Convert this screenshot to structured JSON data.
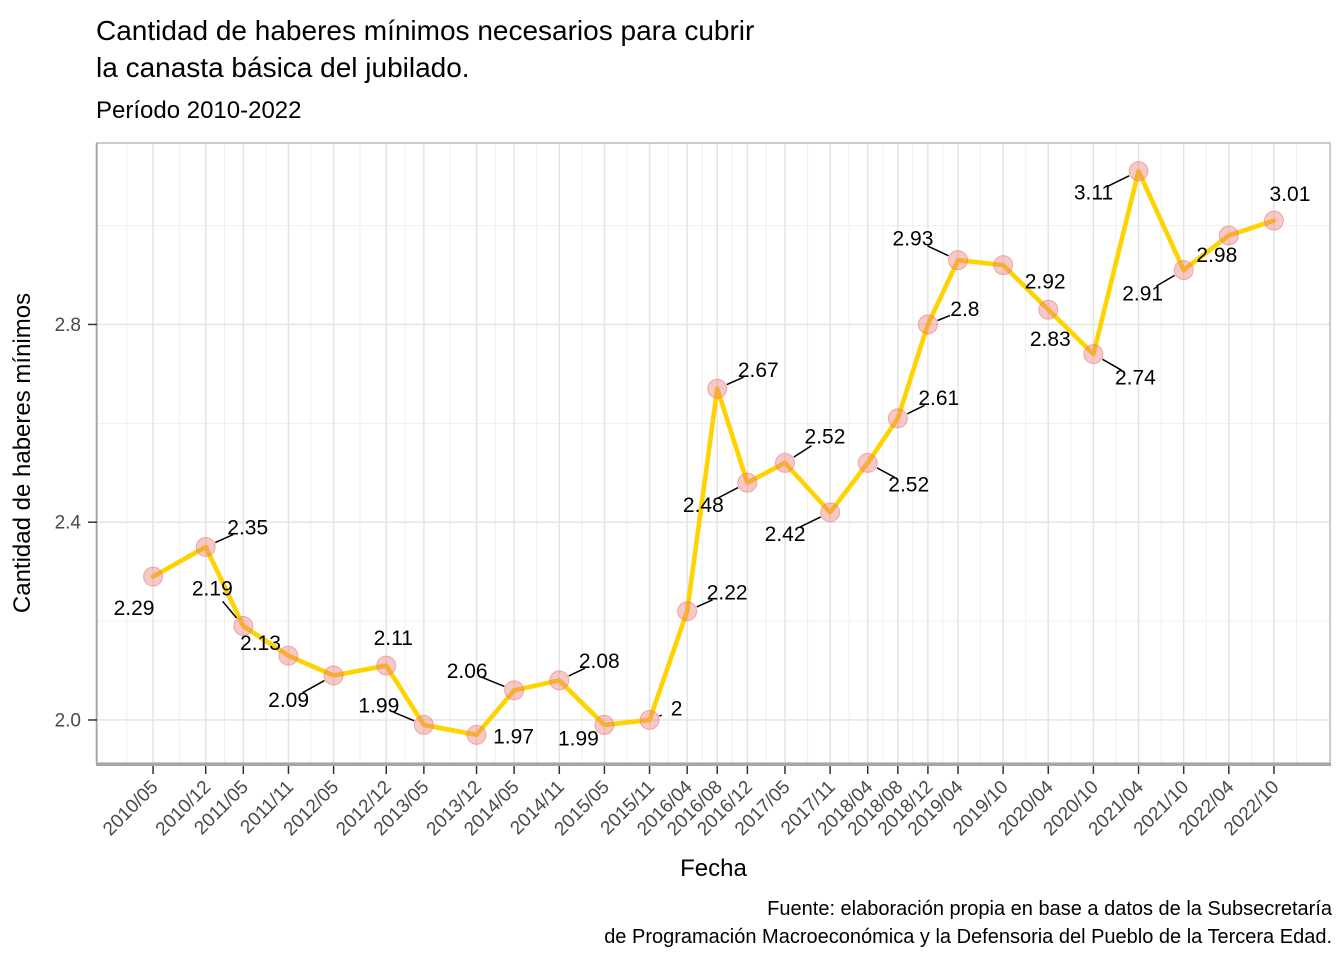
{
  "header": {
    "title_line1": "Cantidad de haberes mínimos necesarios para cubrir",
    "title_line2": "la canasta básica del jubilado.",
    "subtitle": "Período 2010-2022"
  },
  "axes": {
    "x_title": "Fecha",
    "y_title": "Cantidad de haberes mínimos"
  },
  "caption": {
    "line1": "Fuente: elaboración propia en base a datos de la Subsecretaría",
    "line2": "de Programación Macroeconómica y la Defensoria del Pueblo de la Tercera Edad."
  },
  "chart_data": {
    "type": "line",
    "title": "Cantidad de haberes mínimos necesarios para cubrir la canasta básica del jubilado.",
    "subtitle": "Período 2010-2022",
    "xlabel": "Fecha",
    "ylabel": "Cantidad de haberes mínimos",
    "categories": [
      "2010/05",
      "2010/12",
      "2011/05",
      "2011/11",
      "2012/05",
      "2012/12",
      "2013/05",
      "2013/12",
      "2014/05",
      "2014/11",
      "2015/05",
      "2015/11",
      "2016/04",
      "2016/08",
      "2016/12",
      "2017/05",
      "2017/11",
      "2018/04",
      "2018/08",
      "2018/12",
      "2019/04",
      "2019/10",
      "2020/04",
      "2020/10",
      "2021/04",
      "2021/10",
      "2022/04",
      "2022/10"
    ],
    "series": [
      {
        "name": "Cantidad de haberes mínimos",
        "values": [
          2.29,
          2.35,
          2.19,
          2.13,
          2.09,
          2.11,
          1.99,
          1.97,
          2.06,
          2.08,
          1.99,
          2,
          2.22,
          2.67,
          2.48,
          2.52,
          2.42,
          2.52,
          2.61,
          2.8,
          2.93,
          2.92,
          2.83,
          2.74,
          3.11,
          2.91,
          2.98,
          3.01
        ]
      }
    ],
    "point_labels": [
      "2.29",
      "2.35",
      "2.19",
      "2.13",
      "2.09",
      "2.11",
      "1.99",
      "1.97",
      "2.06",
      "2.08",
      "1.99",
      "2",
      "2.22",
      "2.67",
      "2.48",
      "2.52",
      "2.42",
      "2.52",
      "2.61",
      "2.8",
      "2.93",
      "2.92",
      "2.83",
      "2.74",
      "3.11",
      "2.91",
      "2.98",
      "3.01"
    ],
    "label_offsets": [
      [
        -19,
        32,
        0
      ],
      [
        42,
        -19,
        1
      ],
      [
        -31,
        -37,
        1
      ],
      [
        -28,
        -12,
        0
      ],
      [
        -45,
        25,
        1
      ],
      [
        7,
        -27,
        0
      ],
      [
        -45,
        -19,
        1
      ],
      [
        37,
        2,
        0
      ],
      [
        -47,
        -19,
        1
      ],
      [
        40,
        -19,
        1
      ],
      [
        -26,
        14,
        0
      ],
      [
        27,
        -11,
        1
      ],
      [
        40,
        -18,
        1
      ],
      [
        41,
        -18,
        1
      ],
      [
        -44,
        23,
        1
      ],
      [
        40,
        -26,
        1
      ],
      [
        -45,
        22,
        1
      ],
      [
        41,
        22,
        1
      ],
      [
        41,
        -20,
        1
      ],
      [
        37,
        -15,
        1
      ],
      [
        -45,
        -21,
        1
      ],
      [
        42,
        17,
        0
      ],
      [
        2,
        30,
        0
      ],
      [
        42,
        24,
        1
      ],
      [
        -45,
        22,
        1
      ],
      [
        -41,
        24,
        1
      ],
      [
        -12,
        20,
        0
      ],
      [
        16,
        -26,
        0
      ]
    ],
    "y_axis": {
      "tick_labels": [
        "2.0",
        "2.4",
        "2.8"
      ],
      "tick_values": [
        2.0,
        2.4,
        2.8
      ],
      "minor_values": [
        2.2,
        2.6,
        3.0
      ],
      "range": [
        1.913,
        3.167
      ]
    },
    "x_axis": {
      "angle": -45,
      "expand_months": 7.45
    },
    "grid": "major+minor",
    "legend": "none",
    "colors": {
      "line": "#FFD300",
      "point": "#ED7B7B",
      "point_fill_opacity": 0.42,
      "point_stroke_opacity": 0.6,
      "label_text": "#000000",
      "leader": "#000000",
      "grid_major": "#E3E3E3",
      "grid_minor": "#EFEFEF",
      "axis_text": "#4A4A4A",
      "panel_border": "#BDBDBD",
      "axis_line": "#A6A6A6",
      "tick_mark": "#333333"
    }
  }
}
